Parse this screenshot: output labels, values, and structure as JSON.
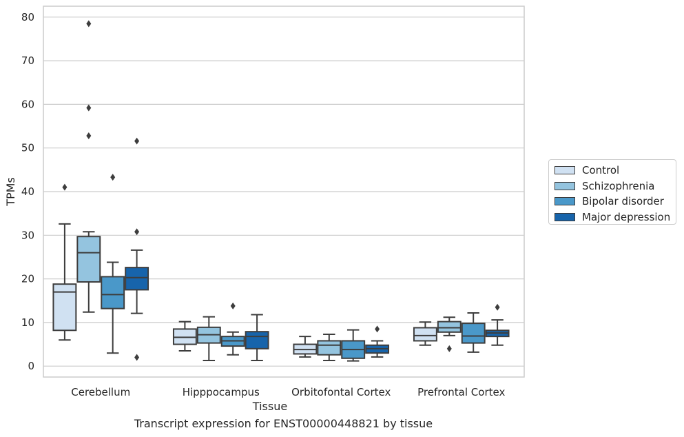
{
  "chart_data": {
    "type": "box",
    "title": "Transcript expression for ENST00000448821 by tissue",
    "xlabel": "Tissue",
    "ylabel": "TPMs",
    "ylim": [
      -2.5,
      82.5
    ],
    "yticks": [
      "0",
      "10",
      "20",
      "30",
      "40",
      "50",
      "60",
      "70",
      "80"
    ],
    "grid": "horizontal",
    "legend_position": "right",
    "categories": [
      "Cerebellum",
      "Hipppocampus",
      "Orbitofontal Cortex",
      "Prefrontal Cortex"
    ],
    "series": [
      {
        "name": "Control",
        "color": "#d0e1f2",
        "boxes": [
          {
            "whislo": 6,
            "q1": 8.2,
            "med": 17,
            "q3": 18.8,
            "whishi": 32.6,
            "fliers": [
              41
            ]
          },
          {
            "whislo": 3.5,
            "q1": 5,
            "med": 6.6,
            "q3": 8.5,
            "whishi": 10.2,
            "fliers": []
          },
          {
            "whislo": 2.1,
            "q1": 2.8,
            "med": 3.8,
            "q3": 5,
            "whishi": 6.8,
            "fliers": []
          },
          {
            "whislo": 4.8,
            "q1": 5.8,
            "med": 7,
            "q3": 8.8,
            "whishi": 10.1,
            "fliers": []
          }
        ]
      },
      {
        "name": "Schizophrenia",
        "color": "#94c4df",
        "boxes": [
          {
            "whislo": 12.4,
            "q1": 19.3,
            "med": 26,
            "q3": 29.7,
            "whishi": 30.8,
            "fliers": [
              52.8,
              59.2,
              78.5
            ]
          },
          {
            "whislo": 1.3,
            "q1": 5.3,
            "med": 7.2,
            "q3": 8.9,
            "whishi": 11.3,
            "fliers": []
          },
          {
            "whislo": 1.3,
            "q1": 2.6,
            "med": 4.8,
            "q3": 5.8,
            "whishi": 7.3,
            "fliers": []
          },
          {
            "whislo": 7,
            "q1": 7.8,
            "med": 8.8,
            "q3": 10.2,
            "whishi": 11.2,
            "fliers": [
              4
            ]
          }
        ]
      },
      {
        "name": "Bipolar disorder",
        "color": "#4a98c9",
        "boxes": [
          {
            "whislo": 3,
            "q1": 13.2,
            "med": 16.4,
            "q3": 20.5,
            "whishi": 23.8,
            "fliers": [
              43.3
            ]
          },
          {
            "whislo": 2.6,
            "q1": 4.6,
            "med": 5.8,
            "q3": 6.8,
            "whishi": 7.8,
            "fliers": [
              13.8
            ]
          },
          {
            "whislo": 1.2,
            "q1": 1.8,
            "med": 3.8,
            "q3": 5.8,
            "whishi": 8.3,
            "fliers": []
          },
          {
            "whislo": 3.2,
            "q1": 5.3,
            "med": 6.9,
            "q3": 9.8,
            "whishi": 12.2,
            "fliers": []
          }
        ]
      },
      {
        "name": "Major depression",
        "color": "#1764ab",
        "boxes": [
          {
            "whislo": 12.1,
            "q1": 17.5,
            "med": 20.3,
            "q3": 22.6,
            "whishi": 26.6,
            "fliers": [
              2,
              30.8,
              51.6
            ]
          },
          {
            "whislo": 1.3,
            "q1": 4,
            "med": 6.8,
            "q3": 7.9,
            "whishi": 11.8,
            "fliers": []
          },
          {
            "whislo": 2.1,
            "q1": 3,
            "med": 4,
            "q3": 4.8,
            "whishi": 5.8,
            "fliers": [
              8.5
            ]
          },
          {
            "whislo": 4.8,
            "q1": 6.8,
            "med": 7.6,
            "q3": 8.2,
            "whishi": 10.6,
            "fliers": [
              13.5
            ]
          }
        ]
      }
    ]
  }
}
